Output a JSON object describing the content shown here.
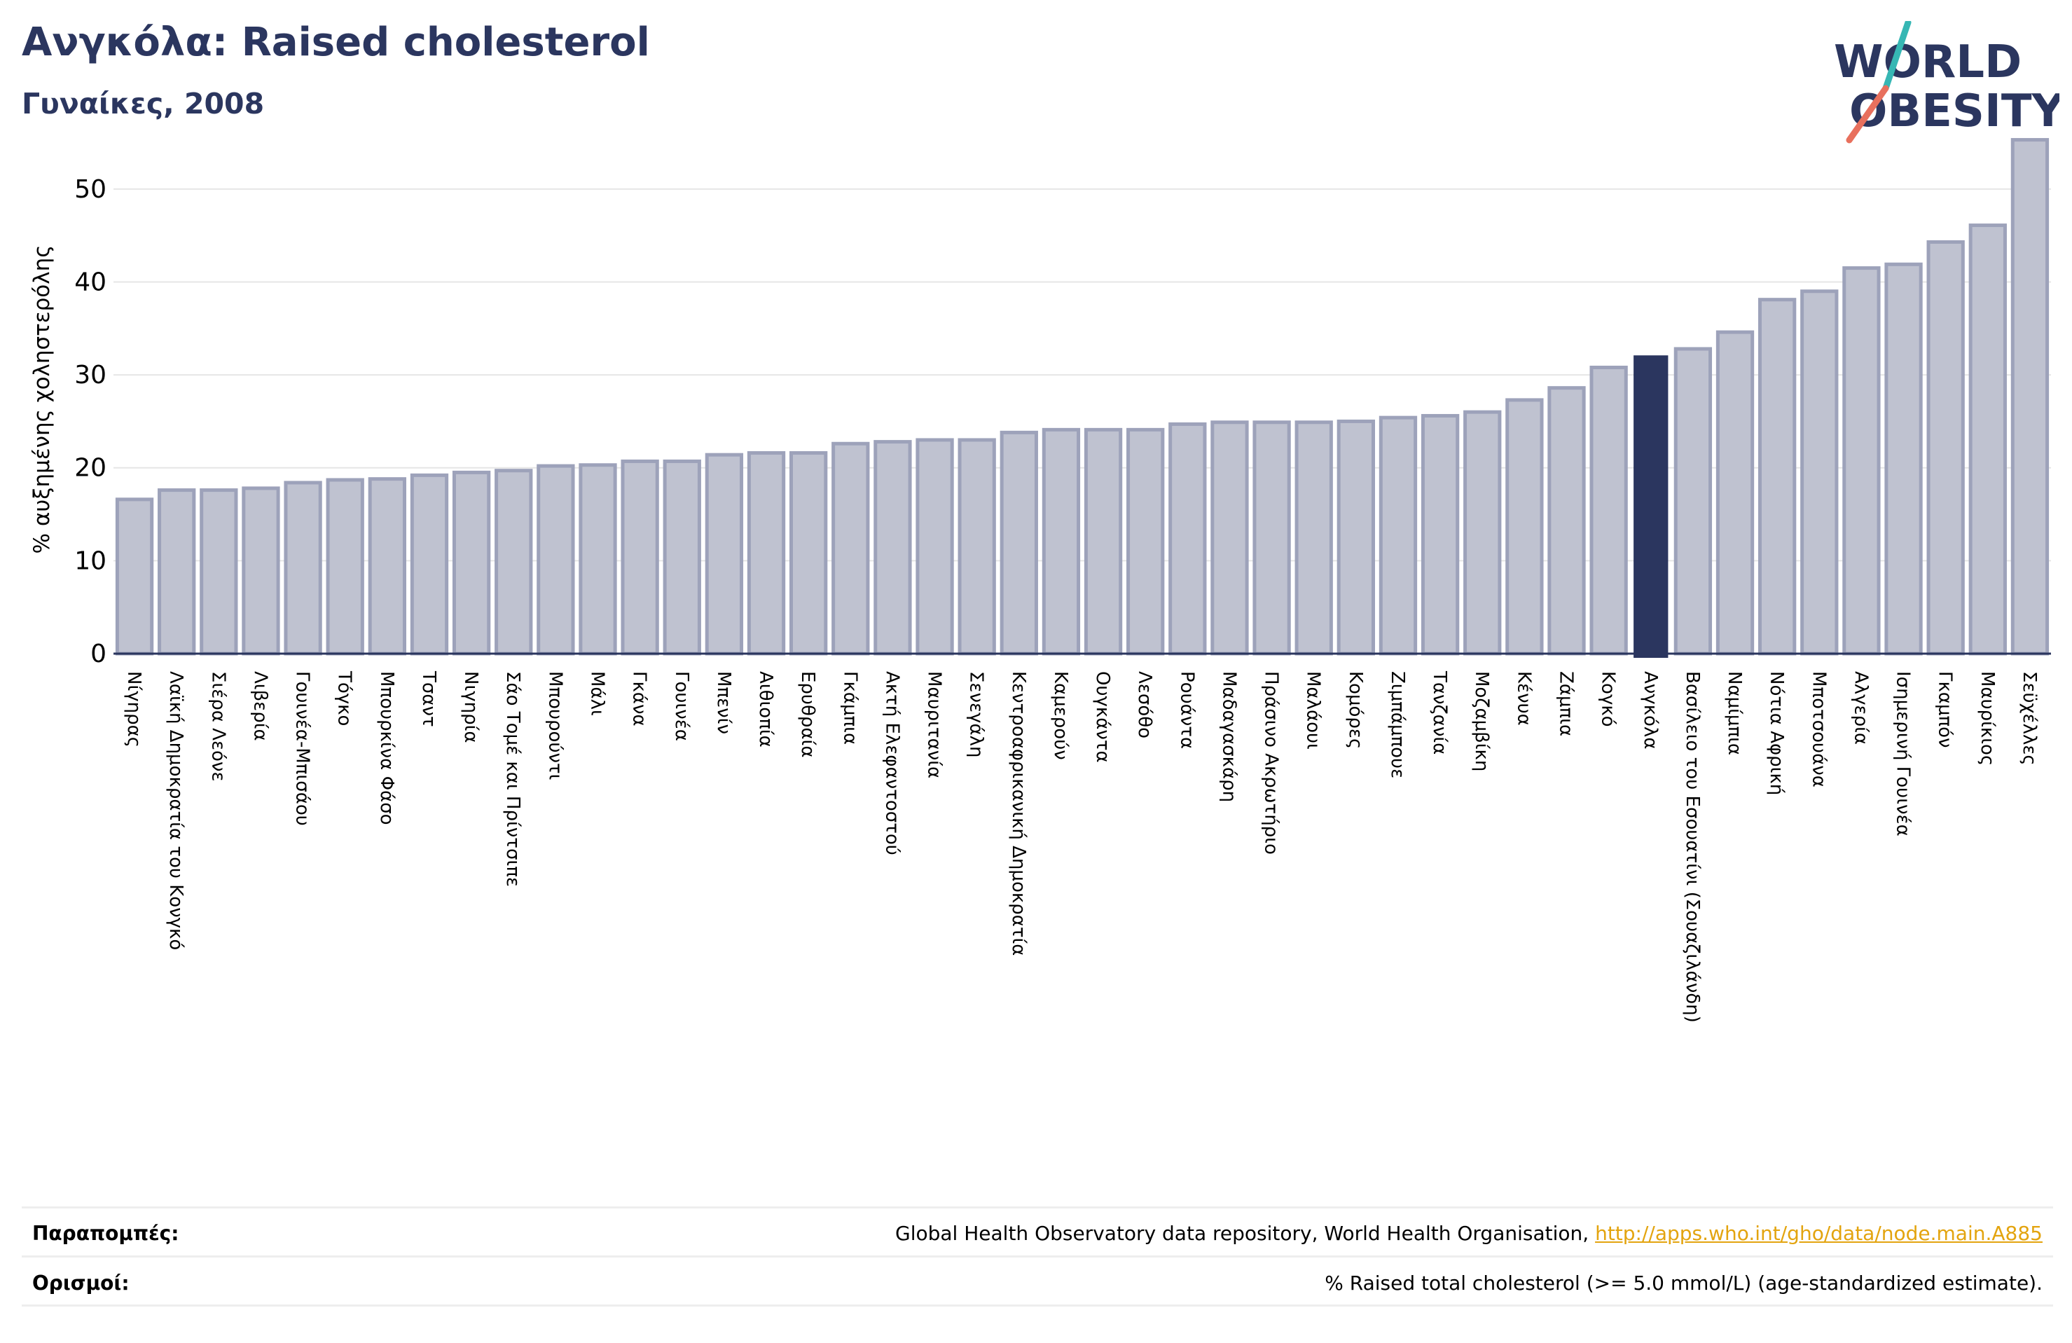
{
  "header": {
    "title": "Ανγκόλα: Raised cholesterol",
    "subtitle": "Γυναίκες, 2008"
  },
  "logo": {
    "line1": "WORLD",
    "line2": "OBESITY"
  },
  "colors": {
    "bar_fill": "#bfc2d0",
    "bar_stroke": "#9da2ba",
    "highlight": "#2b365f",
    "text_title": "#2b365f",
    "link": "#e3a40f",
    "logo_teal": "#36b7b4",
    "logo_red": "#e8705d"
  },
  "chart_data": {
    "type": "bar",
    "ylabel": "% αυξημένης χοληστερόλης",
    "ylim": [
      0,
      57
    ],
    "yticks": [
      0,
      10,
      20,
      30,
      40,
      50
    ],
    "grid": true,
    "highlight_category": "Ανγκόλα",
    "categories": [
      "Νίγηρας",
      "Λαϊκή Δημοκρατία του Κονγκό",
      "Σιέρα Λεόνε",
      "Λιβερία",
      "Γουινέα-Μπισάου",
      "Τόγκο",
      "Μπουρκίνα Φάσο",
      "Τσαντ",
      "Νιγηρία",
      "Σάο Τομέ και Πρίντσιπε",
      "Μπουρούντι",
      "Μάλι",
      "Γκάνα",
      "Γουινέα",
      "Μπενίν",
      "Αιθιοπία",
      "Ερυθραία",
      "Γκάμπια",
      "Ακτή Ελεφαντοστού",
      "Μαυριτανία",
      "Σενεγάλη",
      "Κεντροαφρικανική Δημοκρατία",
      "Καμερούν",
      "Ουγκάντα",
      "Λεσόθο",
      "Ρουάντα",
      "Μαδαγασκάρη",
      "Πράσινο Ακρωτήριο",
      "Μαλάουι",
      "Κομόρες",
      "Ζιμπάμπουε",
      "Τανζανία",
      "Μοζαμβίκη",
      "Κένυα",
      "Ζάμπια",
      "Κογκό",
      "Ανγκόλα",
      "Βασίλειο του Εσουατίνι (Σουαζιλάνδη)",
      "Ναμίμπια",
      "Νότια Αφρική",
      "Μποτσουάνα",
      "Αλγερία",
      "Ισημερινή Γουινέα",
      "Γκαμπόν",
      "Μαυρίκιος",
      "Σεϋχέλλες"
    ],
    "values": [
      16.6,
      17.6,
      17.6,
      17.8,
      18.4,
      18.7,
      18.8,
      19.2,
      19.5,
      19.7,
      20.2,
      20.3,
      20.7,
      20.7,
      21.4,
      21.6,
      21.6,
      22.6,
      22.8,
      23.0,
      23.0,
      23.8,
      24.1,
      24.1,
      24.1,
      24.7,
      24.9,
      24.9,
      24.9,
      25.0,
      25.4,
      25.6,
      26.0,
      27.3,
      28.6,
      30.8,
      32.1,
      32.8,
      34.6,
      38.1,
      39.0,
      41.5,
      41.9,
      44.3,
      46.1,
      55.3
    ]
  },
  "footer": {
    "references_label": "Παραπομπές:",
    "references_text": "Global Health Observatory data repository, World Health Organisation, ",
    "references_link": "http://apps.who.int/gho/data/node.main.A885",
    "definitions_label": "Ορισμοί:",
    "definitions_text": "% Raised total cholesterol (>= 5.0 mmol/L) (age-standardized estimate)."
  }
}
